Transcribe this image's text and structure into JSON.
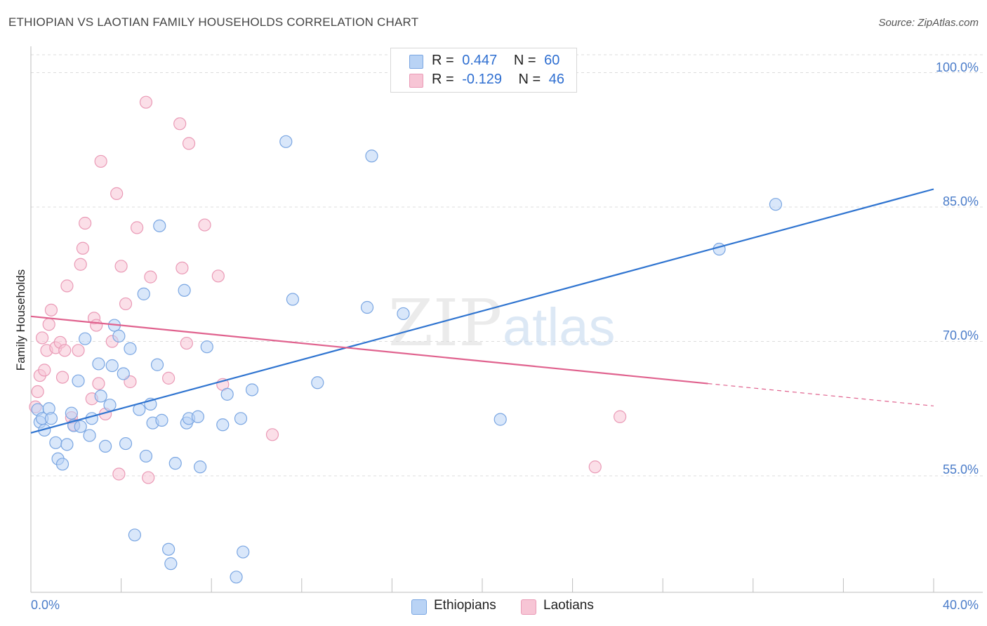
{
  "title": "ETHIOPIAN VS LAOTIAN FAMILY HOUSEHOLDS CORRELATION CHART",
  "source": "Source: ZipAtlas.com",
  "watermark": {
    "part1": "ZIP",
    "part2": "atlas"
  },
  "colors": {
    "ethiopians_fill": "#b9d3f5",
    "ethiopians_stroke": "#7aa6e2",
    "ethiopians_line": "#2f74d0",
    "laotians_fill": "#f7c5d5",
    "laotians_stroke": "#ea9ab6",
    "laotians_line": "#e0628e",
    "tick_text": "#4a7cc9",
    "grid": "#dcdcdc"
  },
  "stats": {
    "ethiopians": {
      "r_label": "R =",
      "r_value": "0.447",
      "n_label": "N =",
      "n_value": "60"
    },
    "laotians": {
      "r_label": "R =",
      "r_value": "-0.129",
      "n_label": "N =",
      "n_value": "46"
    }
  },
  "chart_data": {
    "type": "scatter",
    "title": "ETHIOPIAN VS LAOTIAN FAMILY HOUSEHOLDS CORRELATION CHART",
    "xlabel": "",
    "ylabel": "Family Households",
    "xlim": [
      0,
      40
    ],
    "ylim": [
      42,
      102
    ],
    "x_tick_labels": [
      "0.0%",
      "40.0%"
    ],
    "y_ticks": [
      55,
      70,
      85,
      100
    ],
    "y_tick_labels": [
      "55.0%",
      "70.0%",
      "85.0%",
      "100.0%"
    ],
    "grid": true,
    "legend_position": "bottom",
    "series": [
      {
        "name": "Ethiopians",
        "points": [
          [
            0.3,
            62.4
          ],
          [
            0.4,
            61.0
          ],
          [
            0.5,
            61.4
          ],
          [
            0.6,
            60.1
          ],
          [
            0.8,
            62.5
          ],
          [
            0.9,
            61.4
          ],
          [
            1.1,
            58.7
          ],
          [
            1.2,
            56.9
          ],
          [
            1.4,
            56.3
          ],
          [
            1.6,
            58.5
          ],
          [
            1.8,
            62.0
          ],
          [
            1.9,
            60.6
          ],
          [
            2.2,
            60.5
          ],
          [
            2.1,
            65.6
          ],
          [
            2.4,
            70.3
          ],
          [
            2.6,
            59.5
          ],
          [
            2.7,
            61.4
          ],
          [
            3.0,
            67.5
          ],
          [
            3.1,
            63.9
          ],
          [
            3.3,
            58.3
          ],
          [
            3.5,
            62.9
          ],
          [
            3.6,
            67.3
          ],
          [
            3.7,
            71.8
          ],
          [
            3.9,
            70.6
          ],
          [
            4.1,
            66.4
          ],
          [
            4.2,
            58.6
          ],
          [
            4.4,
            69.2
          ],
          [
            4.6,
            48.4
          ],
          [
            4.8,
            62.4
          ],
          [
            5.0,
            75.3
          ],
          [
            5.1,
            57.2
          ],
          [
            5.3,
            63.0
          ],
          [
            5.4,
            60.9
          ],
          [
            5.6,
            67.4
          ],
          [
            5.7,
            82.9
          ],
          [
            5.8,
            61.2
          ],
          [
            6.1,
            46.8
          ],
          [
            6.2,
            45.2
          ],
          [
            6.4,
            56.4
          ],
          [
            6.8,
            75.7
          ],
          [
            6.9,
            60.9
          ],
          [
            7.0,
            61.4
          ],
          [
            7.4,
            61.6
          ],
          [
            7.5,
            56.0
          ],
          [
            7.8,
            69.4
          ],
          [
            8.5,
            60.7
          ],
          [
            8.7,
            64.1
          ],
          [
            9.1,
            43.7
          ],
          [
            9.3,
            61.4
          ],
          [
            9.4,
            46.5
          ],
          [
            9.8,
            64.6
          ],
          [
            11.3,
            92.3
          ],
          [
            11.6,
            74.7
          ],
          [
            12.7,
            65.4
          ],
          [
            14.9,
            73.8
          ],
          [
            15.1,
            90.7
          ],
          [
            16.5,
            73.1
          ],
          [
            20.8,
            61.3
          ],
          [
            30.5,
            80.3
          ],
          [
            33.0,
            85.3
          ]
        ],
        "trend": {
          "x": [
            0.0,
            40.0
          ],
          "y": [
            59.8,
            87.0
          ],
          "dashed_from_x": null
        }
      },
      {
        "name": "Laotians",
        "points": [
          [
            0.2,
            62.7
          ],
          [
            0.3,
            64.4
          ],
          [
            0.4,
            66.2
          ],
          [
            0.5,
            70.4
          ],
          [
            0.6,
            66.8
          ],
          [
            0.7,
            69.0
          ],
          [
            0.8,
            71.9
          ],
          [
            0.9,
            73.5
          ],
          [
            1.1,
            69.3
          ],
          [
            1.3,
            69.9
          ],
          [
            1.4,
            66.0
          ],
          [
            1.5,
            69.0
          ],
          [
            1.6,
            76.2
          ],
          [
            1.8,
            61.5
          ],
          [
            1.9,
            60.7
          ],
          [
            2.1,
            69.0
          ],
          [
            2.2,
            78.6
          ],
          [
            2.3,
            80.4
          ],
          [
            2.4,
            83.2
          ],
          [
            2.7,
            63.6
          ],
          [
            2.8,
            72.6
          ],
          [
            2.9,
            71.8
          ],
          [
            3.0,
            65.3
          ],
          [
            3.1,
            90.1
          ],
          [
            3.3,
            61.9
          ],
          [
            3.6,
            70.0
          ],
          [
            3.8,
            86.5
          ],
          [
            3.9,
            55.2
          ],
          [
            4.0,
            78.4
          ],
          [
            4.2,
            74.2
          ],
          [
            4.4,
            65.5
          ],
          [
            4.7,
            82.7
          ],
          [
            5.1,
            96.7
          ],
          [
            5.2,
            54.8
          ],
          [
            5.3,
            77.2
          ],
          [
            6.1,
            65.9
          ],
          [
            6.6,
            94.3
          ],
          [
            6.7,
            78.2
          ],
          [
            6.9,
            69.8
          ],
          [
            7.0,
            92.1
          ],
          [
            7.7,
            83.0
          ],
          [
            8.3,
            77.3
          ],
          [
            8.5,
            65.2
          ],
          [
            10.7,
            59.6
          ],
          [
            25.0,
            56.0
          ],
          [
            26.1,
            61.6
          ]
        ],
        "trend": {
          "x": [
            0.0,
            40.0
          ],
          "y": [
            72.8,
            62.8
          ],
          "dashed_from_x": 30.0
        }
      }
    ]
  }
}
